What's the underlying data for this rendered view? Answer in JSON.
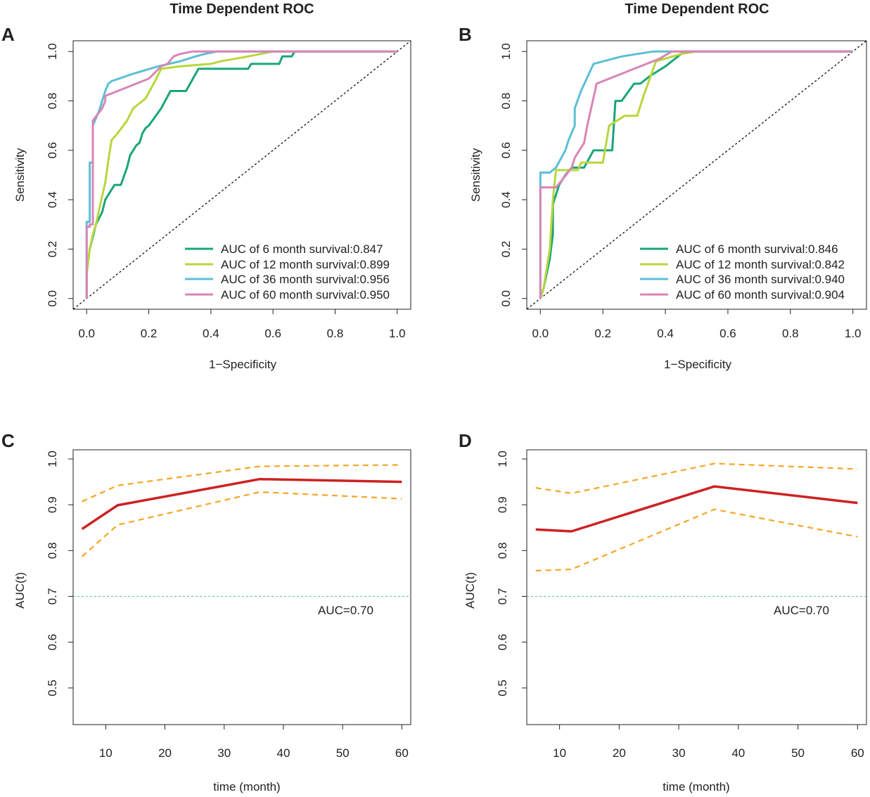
{
  "colors": {
    "m6": "#1aa57a",
    "m12": "#b8d63e",
    "m36": "#5bbfd6",
    "m60": "#d985b6",
    "auc_line": "#cc2222",
    "ci_line": "#f5a623",
    "ref_line": "#5bbf9f",
    "diagonal": "#111111",
    "axis": "#222222"
  },
  "chart_data": [
    {
      "id": "A",
      "type": "line",
      "panel_label": "A",
      "title": "Time Dependent ROC",
      "xlabel": "1−Specificity",
      "ylabel": "Sensitivity",
      "xlim": [
        0,
        1
      ],
      "ylim": [
        0,
        1
      ],
      "xticks": [
        "0.0",
        "0.2",
        "0.4",
        "0.6",
        "0.8",
        "1.0"
      ],
      "yticks": [
        "0.0",
        "0.2",
        "0.4",
        "0.6",
        "0.8",
        "1.0"
      ],
      "diagonal": true,
      "legend_position": "bottom-right",
      "series": [
        {
          "name": "AUC of 6 month survival:0.847",
          "color_key": "m6",
          "points": [
            [
              0,
              0
            ],
            [
              0,
              0.1
            ],
            [
              0.01,
              0.2
            ],
            [
              0.02,
              0.25
            ],
            [
              0.03,
              0.3
            ],
            [
              0.05,
              0.35
            ],
            [
              0.06,
              0.4
            ],
            [
              0.08,
              0.44
            ],
            [
              0.09,
              0.46
            ],
            [
              0.11,
              0.46
            ],
            [
              0.13,
              0.53
            ],
            [
              0.14,
              0.58
            ],
            [
              0.16,
              0.62
            ],
            [
              0.17,
              0.63
            ],
            [
              0.18,
              0.67
            ],
            [
              0.19,
              0.69
            ],
            [
              0.2,
              0.7
            ],
            [
              0.24,
              0.77
            ],
            [
              0.27,
              0.84
            ],
            [
              0.32,
              0.84
            ],
            [
              0.36,
              0.93
            ],
            [
              0.52,
              0.93
            ],
            [
              0.53,
              0.95
            ],
            [
              0.62,
              0.95
            ],
            [
              0.63,
              0.98
            ],
            [
              0.66,
              0.98
            ],
            [
              0.67,
              1.0
            ],
            [
              1.0,
              1.0
            ]
          ]
        },
        {
          "name": "AUC of 12 month survival:0.899",
          "color_key": "m12",
          "points": [
            [
              0,
              0
            ],
            [
              0,
              0.1
            ],
            [
              0.01,
              0.2
            ],
            [
              0.02,
              0.26
            ],
            [
              0.03,
              0.3
            ],
            [
              0.04,
              0.36
            ],
            [
              0.06,
              0.47
            ],
            [
              0.07,
              0.56
            ],
            [
              0.08,
              0.64
            ],
            [
              0.1,
              0.67
            ],
            [
              0.13,
              0.72
            ],
            [
              0.15,
              0.77
            ],
            [
              0.19,
              0.81
            ],
            [
              0.22,
              0.88
            ],
            [
              0.24,
              0.93
            ],
            [
              0.3,
              0.94
            ],
            [
              0.4,
              0.95
            ],
            [
              0.43,
              0.96
            ],
            [
              0.52,
              0.98
            ],
            [
              0.56,
              0.99
            ],
            [
              0.6,
              1.0
            ],
            [
              1.0,
              1.0
            ]
          ]
        },
        {
          "name": "AUC of 36 month survival:0.956",
          "color_key": "m36",
          "points": [
            [
              0,
              0
            ],
            [
              0,
              0.31
            ],
            [
              0.01,
              0.31
            ],
            [
              0.01,
              0.55
            ],
            [
              0.02,
              0.55
            ],
            [
              0.02,
              0.7
            ],
            [
              0.04,
              0.76
            ],
            [
              0.06,
              0.84
            ],
            [
              0.07,
              0.87
            ],
            [
              0.08,
              0.88
            ],
            [
              0.15,
              0.91
            ],
            [
              0.23,
              0.94
            ],
            [
              0.3,
              0.96
            ],
            [
              0.35,
              0.98
            ],
            [
              0.38,
              0.99
            ],
            [
              0.42,
              1.0
            ],
            [
              1.0,
              1.0
            ]
          ]
        },
        {
          "name": "AUC of 60 month survival:0.950",
          "color_key": "m60",
          "points": [
            [
              0,
              0
            ],
            [
              0,
              0.29
            ],
            [
              0.01,
              0.29
            ],
            [
              0.01,
              0.3
            ],
            [
              0.02,
              0.3
            ],
            [
              0.02,
              0.72
            ],
            [
              0.05,
              0.77
            ],
            [
              0.06,
              0.8
            ],
            [
              0.06,
              0.82
            ],
            [
              0.12,
              0.85
            ],
            [
              0.2,
              0.89
            ],
            [
              0.24,
              0.94
            ],
            [
              0.26,
              0.95
            ],
            [
              0.28,
              0.98
            ],
            [
              0.3,
              0.99
            ],
            [
              0.34,
              1.0
            ],
            [
              1.0,
              1.0
            ]
          ]
        }
      ]
    },
    {
      "id": "B",
      "type": "line",
      "panel_label": "B",
      "title": "Time Dependent ROC",
      "xlabel": "1−Specificity",
      "ylabel": "Sensitivity",
      "xlim": [
        0,
        1
      ],
      "ylim": [
        0,
        1
      ],
      "xticks": [
        "0.0",
        "0.2",
        "0.4",
        "0.6",
        "0.8",
        "1.0"
      ],
      "yticks": [
        "0.0",
        "0.2",
        "0.4",
        "0.6",
        "0.8",
        "1.0"
      ],
      "diagonal": true,
      "legend_position": "bottom-right",
      "series": [
        {
          "name": "AUC of 6 month survival:0.846",
          "color_key": "m6",
          "points": [
            [
              0,
              0
            ],
            [
              0.01,
              0.04
            ],
            [
              0.03,
              0.16
            ],
            [
              0.04,
              0.26
            ],
            [
              0.04,
              0.38
            ],
            [
              0.05,
              0.42
            ],
            [
              0.06,
              0.46
            ],
            [
              0.08,
              0.5
            ],
            [
              0.1,
              0.53
            ],
            [
              0.14,
              0.53
            ],
            [
              0.17,
              0.6
            ],
            [
              0.23,
              0.6
            ],
            [
              0.24,
              0.8
            ],
            [
              0.26,
              0.8
            ],
            [
              0.3,
              0.87
            ],
            [
              0.32,
              0.87
            ],
            [
              0.35,
              0.9
            ],
            [
              0.4,
              0.94
            ],
            [
              0.46,
              1.0
            ],
            [
              1.0,
              1.0
            ]
          ]
        },
        {
          "name": "AUC of 12 month survival:0.842",
          "color_key": "m12",
          "points": [
            [
              0,
              0
            ],
            [
              0.01,
              0.04
            ],
            [
              0.03,
              0.2
            ],
            [
              0.04,
              0.4
            ],
            [
              0.05,
              0.52
            ],
            [
              0.12,
              0.52
            ],
            [
              0.13,
              0.55
            ],
            [
              0.2,
              0.55
            ],
            [
              0.22,
              0.7
            ],
            [
              0.27,
              0.74
            ],
            [
              0.31,
              0.74
            ],
            [
              0.33,
              0.82
            ],
            [
              0.37,
              0.96
            ],
            [
              0.45,
              0.99
            ],
            [
              0.5,
              1.0
            ],
            [
              1.0,
              1.0
            ]
          ]
        },
        {
          "name": "AUC of 36 month survival:0.940",
          "color_key": "m36",
          "points": [
            [
              0,
              0
            ],
            [
              0,
              0.51
            ],
            [
              0.03,
              0.51
            ],
            [
              0.05,
              0.53
            ],
            [
              0.08,
              0.6
            ],
            [
              0.09,
              0.64
            ],
            [
              0.11,
              0.7
            ],
            [
              0.11,
              0.77
            ],
            [
              0.13,
              0.84
            ],
            [
              0.17,
              0.95
            ],
            [
              0.26,
              0.98
            ],
            [
              0.36,
              1.0
            ],
            [
              1.0,
              1.0
            ]
          ]
        },
        {
          "name": "AUC of 60 month survival:0.904",
          "color_key": "m60",
          "points": [
            [
              0,
              0
            ],
            [
              0,
              0.45
            ],
            [
              0.05,
              0.45
            ],
            [
              0.07,
              0.48
            ],
            [
              0.1,
              0.53
            ],
            [
              0.11,
              0.57
            ],
            [
              0.14,
              0.63
            ],
            [
              0.15,
              0.7
            ],
            [
              0.18,
              0.87
            ],
            [
              0.28,
              0.92
            ],
            [
              0.38,
              0.97
            ],
            [
              0.42,
              1.0
            ],
            [
              1.0,
              1.0
            ]
          ]
        }
      ]
    },
    {
      "id": "C",
      "type": "line",
      "panel_label": "C",
      "title": "",
      "xlabel": "time (month)",
      "ylabel": "AUC(t)",
      "xlim": [
        4.5,
        61.5
      ],
      "ylim": [
        0.42,
        1.02
      ],
      "xticks": [
        10,
        20,
        30,
        40,
        50,
        60
      ],
      "yticks": [
        "0.5",
        "0.6",
        "0.7",
        "0.8",
        "0.9",
        "1.0"
      ],
      "x": [
        6,
        12,
        36,
        60
      ],
      "auc": [
        0.847,
        0.899,
        0.956,
        0.95
      ],
      "ci_upper": [
        0.907,
        0.942,
        0.984,
        0.987
      ],
      "ci_lower": [
        0.787,
        0.856,
        0.928,
        0.913
      ],
      "reference_line": {
        "y": 0.7,
        "label": "AUC=0.70"
      }
    },
    {
      "id": "D",
      "type": "line",
      "panel_label": "D",
      "title": "",
      "xlabel": "time (month)",
      "ylabel": "AUC(t)",
      "xlim": [
        4.5,
        61.5
      ],
      "ylim": [
        0.42,
        1.02
      ],
      "xticks": [
        10,
        20,
        30,
        40,
        50,
        60
      ],
      "yticks": [
        "0.5",
        "0.6",
        "0.7",
        "0.8",
        "0.9",
        "1.0"
      ],
      "x": [
        6,
        12,
        36,
        60
      ],
      "auc": [
        0.846,
        0.842,
        0.94,
        0.904
      ],
      "ci_upper": [
        0.937,
        0.925,
        0.99,
        0.978
      ],
      "ci_lower": [
        0.756,
        0.759,
        0.89,
        0.83
      ],
      "reference_line": {
        "y": 0.7,
        "label": "AUC=0.70"
      }
    }
  ]
}
